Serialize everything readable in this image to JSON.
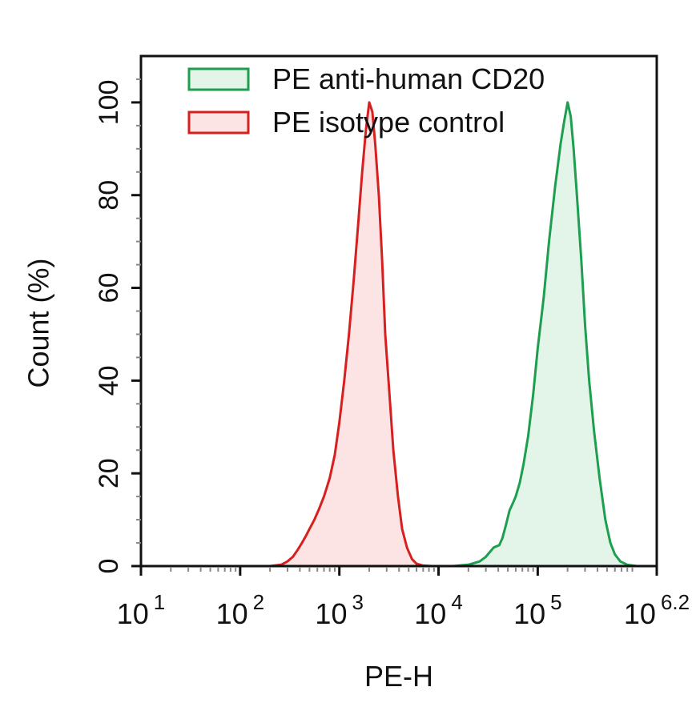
{
  "chart_data": {
    "type": "area",
    "title": "",
    "xlabel": "PE-H",
    "ylabel": "Count  (%)",
    "x_scale": "log10",
    "xlim": [
      10,
      1584893
    ],
    "ylim": [
      0,
      110
    ],
    "x_ticks": [
      {
        "value": 10,
        "base": "10",
        "exp": "1"
      },
      {
        "value": 100,
        "base": "10",
        "exp": "2"
      },
      {
        "value": 1000,
        "base": "10",
        "exp": "3"
      },
      {
        "value": 10000,
        "base": "10",
        "exp": "4"
      },
      {
        "value": 100000,
        "base": "10",
        "exp": "5"
      },
      {
        "value": 1584893,
        "base": "10",
        "exp": "6.2"
      }
    ],
    "y_ticks": [
      0,
      20,
      40,
      60,
      80,
      100
    ],
    "legend_position": "top-left",
    "grid": false,
    "series": [
      {
        "name": "PE anti-human CD20",
        "stroke": "#1e9e4f",
        "fill": "#e3f5e9",
        "x": [
          14000,
          20000,
          26000,
          30000,
          36000,
          41000,
          44000,
          48000,
          52000,
          56000,
          60000,
          66000,
          72000,
          80000,
          90000,
          100000,
          115000,
          130000,
          150000,
          170000,
          185000,
          200000,
          215000,
          230000,
          250000,
          275000,
          300000,
          330000,
          370000,
          420000,
          480000,
          540000,
          600000,
          680000,
          800000,
          1000000
        ],
        "y": [
          0,
          0.3,
          1,
          2,
          4,
          4.5,
          6,
          9,
          12,
          13.5,
          15,
          18,
          22,
          28,
          37,
          47,
          58,
          70,
          82,
          91,
          96,
          100,
          97,
          90,
          79,
          66,
          52,
          40,
          29,
          19,
          10,
          5,
          2.5,
          1,
          0.3,
          0
        ]
      },
      {
        "name": "PE isotype control",
        "stroke": "#d62020",
        "fill": "#fde4e4",
        "x": [
          200,
          260,
          300,
          340,
          380,
          420,
          460,
          500,
          560,
          630,
          700,
          800,
          900,
          1000,
          1120,
          1250,
          1400,
          1550,
          1700,
          1850,
          2000,
          2150,
          2300,
          2500,
          2700,
          2900,
          3200,
          3500,
          3900,
          4300,
          4800,
          5400,
          6000,
          7000,
          8500
        ],
        "y": [
          0,
          0.3,
          1,
          2,
          3.5,
          5,
          6.5,
          8,
          10,
          12.5,
          15,
          19,
          24,
          31,
          40,
          50,
          62,
          74,
          85,
          94,
          100,
          98,
          91,
          80,
          66,
          50,
          37,
          25,
          15,
          8,
          4,
          1.5,
          0.5,
          0.1,
          0
        ]
      }
    ]
  }
}
